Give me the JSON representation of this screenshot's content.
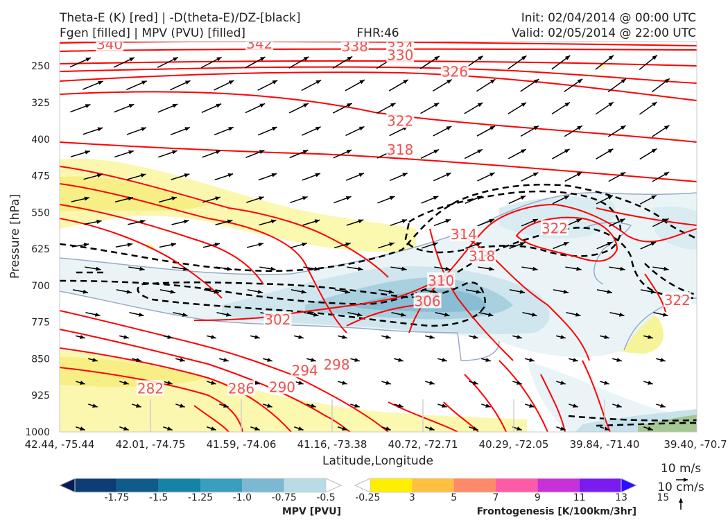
{
  "header": {
    "title_line1": "Theta-E (K) [red] | -D(theta-E)/DZ-[black]",
    "title_line2": "Fgen [filled] | MPV (PVU) [filled]",
    "fhr": "FHR:46",
    "init": "Init: 02/04/2014 @ 00:00 UTC",
    "valid": "Valid: 02/05/2014 @ 22:00 UTC"
  },
  "chart_data": {
    "type": "cross-section",
    "xlabel": "Latitude,Longitude",
    "ylabel": "Pressure [hPa]",
    "y_axis": {
      "scale": "linear",
      "inverted": true,
      "range": [
        1000,
        200
      ],
      "ticks": [
        250,
        325,
        400,
        475,
        550,
        625,
        700,
        775,
        850,
        925,
        1000
      ]
    },
    "x_ticks": [
      "42.44, -75.44",
      "42.01, -74.75",
      "41.59, -74.06",
      "41.16, -73.38",
      "40.72, -72.71",
      "40.29, -72.05",
      "39.84, -71.40",
      "39.40, -70.7"
    ],
    "theta_e_labels": [
      {
        "text": "340",
        "x": 0.55,
        "p": 206
      },
      {
        "text": "342",
        "x": 2.2,
        "p": 204
      },
      {
        "text": "338",
        "x": 3.25,
        "p": 210
      },
      {
        "text": "334",
        "x": 3.75,
        "p": 212
      },
      {
        "text": "330",
        "x": 3.75,
        "p": 228
      },
      {
        "text": "326",
        "x": 4.35,
        "p": 262
      },
      {
        "text": "322",
        "x": 3.75,
        "p": 363
      },
      {
        "text": "318",
        "x": 3.75,
        "p": 422
      },
      {
        "text": "314",
        "x": 4.45,
        "p": 595
      },
      {
        "text": "318",
        "x": 4.65,
        "p": 640
      },
      {
        "text": "322",
        "x": 5.45,
        "p": 583
      },
      {
        "text": "310",
        "x": 4.2,
        "p": 690
      },
      {
        "text": "306",
        "x": 4.05,
        "p": 732
      },
      {
        "text": "302",
        "x": 2.4,
        "p": 770
      },
      {
        "text": "322",
        "x": 6.8,
        "p": 730
      },
      {
        "text": "294",
        "x": 2.7,
        "p": 874
      },
      {
        "text": "298",
        "x": 3.05,
        "p": 862
      },
      {
        "text": "282",
        "x": 1.0,
        "p": 911
      },
      {
        "text": "286",
        "x": 2.0,
        "p": 911
      },
      {
        "text": "290",
        "x": 2.45,
        "p": 908
      }
    ],
    "mpv_colorbar": {
      "label": "MPV [PVU]",
      "ticks": [
        "-1.75",
        "-1.5",
        "-1.25",
        "-1.0",
        "-0.75",
        "-0.5",
        "-0.25"
      ],
      "colors": [
        "#081d58",
        "#0d3d76",
        "#0e5b8c",
        "#1583a8",
        "#3a9ec0",
        "#7ab9d1",
        "#b8dbe5",
        "#ffffff"
      ]
    },
    "fgen_colorbar": {
      "label": "Frontogenesis [K/100km/3hr]",
      "ticks": [
        "3",
        "5",
        "7",
        "9",
        "11",
        "13",
        "15"
      ],
      "colors": [
        "#ffffff",
        "#ffee00",
        "#ffc040",
        "#ff8a6a",
        "#ff5aa8",
        "#c830d8",
        "#7a1cf0",
        "#2a10ff"
      ]
    },
    "vector_key": {
      "horizontal": "10 m/s",
      "vertical": "10 cm/s"
    }
  }
}
